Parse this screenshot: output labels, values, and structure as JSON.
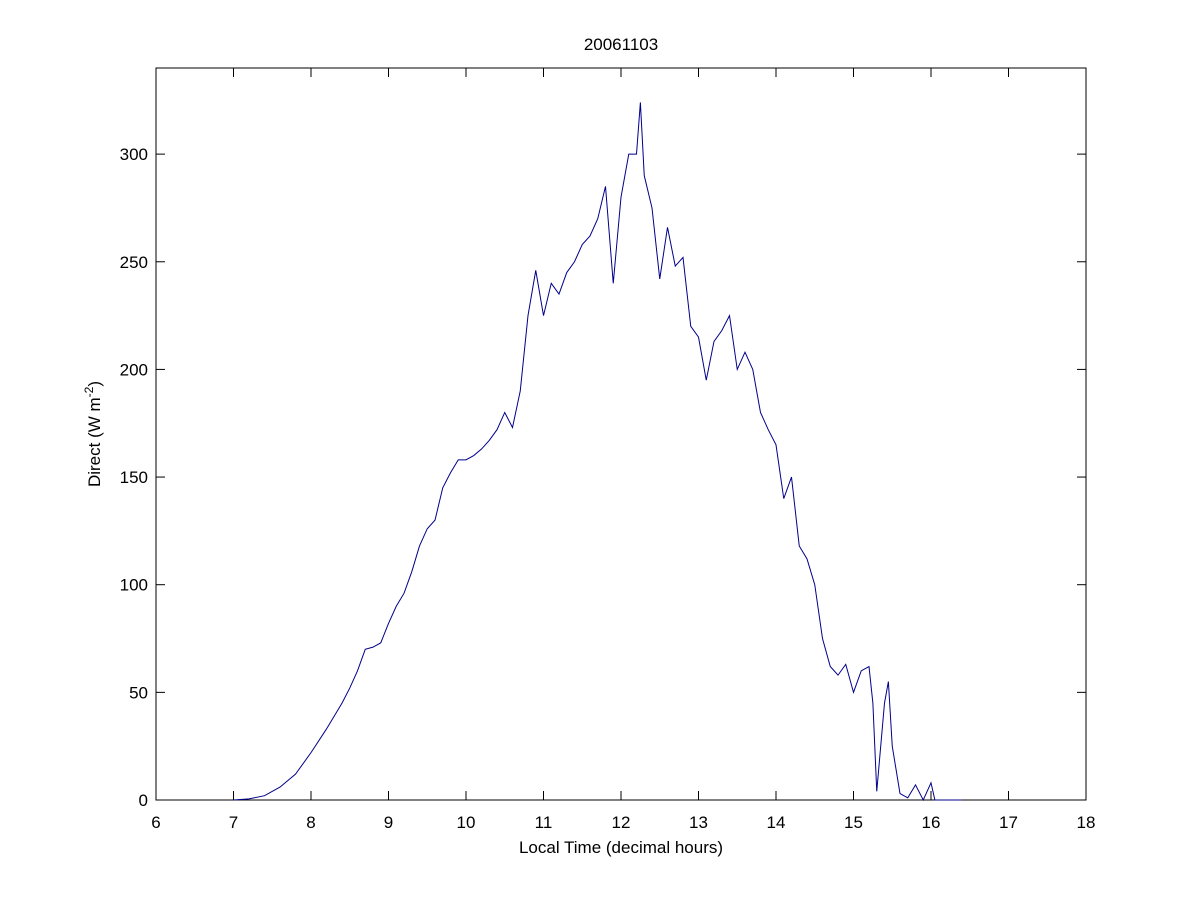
{
  "chart_data": {
    "type": "line",
    "title": "20061103",
    "xlabel": "Local Time (decimal hours)",
    "ylabel": [
      "Direct (W m",
      "-2",
      ")"
    ],
    "x": [
      7.0,
      7.2,
      7.4,
      7.6,
      7.8,
      8.0,
      8.2,
      8.4,
      8.5,
      8.6,
      8.7,
      8.8,
      8.9,
      9.0,
      9.1,
      9.2,
      9.3,
      9.4,
      9.5,
      9.6,
      9.7,
      9.8,
      9.9,
      10.0,
      10.1,
      10.2,
      10.3,
      10.4,
      10.5,
      10.6,
      10.7,
      10.8,
      10.9,
      11.0,
      11.1,
      11.2,
      11.3,
      11.4,
      11.5,
      11.6,
      11.7,
      11.8,
      11.9,
      12.0,
      12.1,
      12.2,
      12.25,
      12.3,
      12.4,
      12.5,
      12.6,
      12.7,
      12.8,
      12.9,
      13.0,
      13.1,
      13.2,
      13.3,
      13.4,
      13.5,
      13.6,
      13.7,
      13.8,
      13.9,
      14.0,
      14.1,
      14.2,
      14.3,
      14.4,
      14.5,
      14.6,
      14.7,
      14.8,
      14.9,
      15.0,
      15.1,
      15.2,
      15.25,
      15.3,
      15.4,
      15.45,
      15.5,
      15.6,
      15.7,
      15.8,
      15.9,
      16.0,
      16.05,
      16.4
    ],
    "series": [
      {
        "name": "Direct",
        "color": "#00008b",
        "values": [
          0,
          0.5,
          2,
          6,
          12,
          22,
          33,
          45,
          52,
          60,
          70,
          71,
          73,
          82,
          90,
          96,
          106,
          118,
          126,
          130,
          145,
          152,
          158,
          158,
          160,
          163,
          167,
          172,
          180,
          173,
          190,
          225,
          246,
          225,
          240,
          235,
          245,
          250,
          258,
          262,
          270,
          285,
          240,
          280,
          300,
          300,
          324,
          290,
          275,
          242,
          266,
          248,
          252,
          220,
          215,
          195,
          213,
          218,
          225,
          200,
          208,
          200,
          180,
          172,
          165,
          140,
          150,
          118,
          112,
          100,
          75,
          62,
          58,
          63,
          50,
          60,
          62,
          45,
          4,
          45,
          55,
          25,
          3,
          1,
          7,
          0,
          8,
          0,
          0
        ]
      }
    ],
    "xlim": [
      6,
      18
    ],
    "xticks": [
      6,
      7,
      8,
      9,
      10,
      11,
      12,
      13,
      14,
      15,
      16,
      17,
      18
    ],
    "ylim": [
      0,
      340
    ],
    "yticks": [
      0,
      50,
      100,
      150,
      200,
      250,
      300
    ],
    "grid": false
  }
}
